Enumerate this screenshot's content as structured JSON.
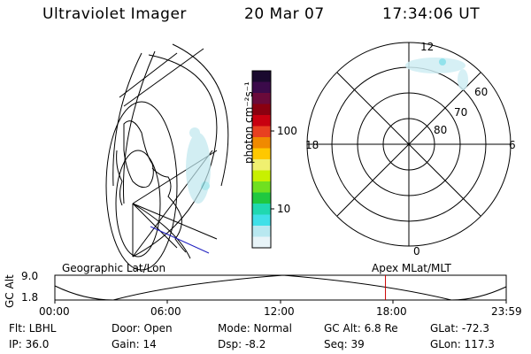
{
  "header": {
    "instrument": "Ultraviolet Imager",
    "date": "20 Mar 07",
    "time": "17:34:06 UT"
  },
  "colorbar": {
    "unit_label": "photon cm⁻²s⁻¹",
    "ticks": [
      "100",
      "10"
    ],
    "colors": [
      "#1a0a2e",
      "#3b0a4a",
      "#6a0a3a",
      "#8a0010",
      "#c80010",
      "#e84020",
      "#f08a00",
      "#ffc800",
      "#f0f070",
      "#c8f000",
      "#70e020",
      "#20c840",
      "#20d8b0",
      "#40e0e8",
      "#b8e8f0",
      "#e8f4f8"
    ]
  },
  "geographic_map": {
    "label": "Geographic Lat/Lon"
  },
  "polar_plot": {
    "label": "Apex  MLat/MLT",
    "mlt_labels": {
      "top": "12",
      "left": "18",
      "right": "6",
      "bottom": "0"
    },
    "lat_labels": [
      "60",
      "70",
      "80"
    ]
  },
  "timeline": {
    "y_axis_title": "GC Alt",
    "y_ticks": [
      "9.0",
      "1.8"
    ],
    "x_ticks": [
      "00:00",
      "06:00",
      "12:00",
      "18:00",
      "23:59"
    ],
    "marker_time": "17:34",
    "marker_color": "#cc0000"
  },
  "status": {
    "filter": "Flt: LBHL",
    "ip": "IP: 36.0",
    "door": "Door: Open",
    "gain": "Gain: 14",
    "mode": "Mode: Normal",
    "dsp": "Dsp:    -8.2",
    "gc_alt": "GC Alt: 6.8 Re",
    "seq": "Seq: 39",
    "glat": "GLat: -72.3",
    "glon": "GLon: 117.3"
  }
}
